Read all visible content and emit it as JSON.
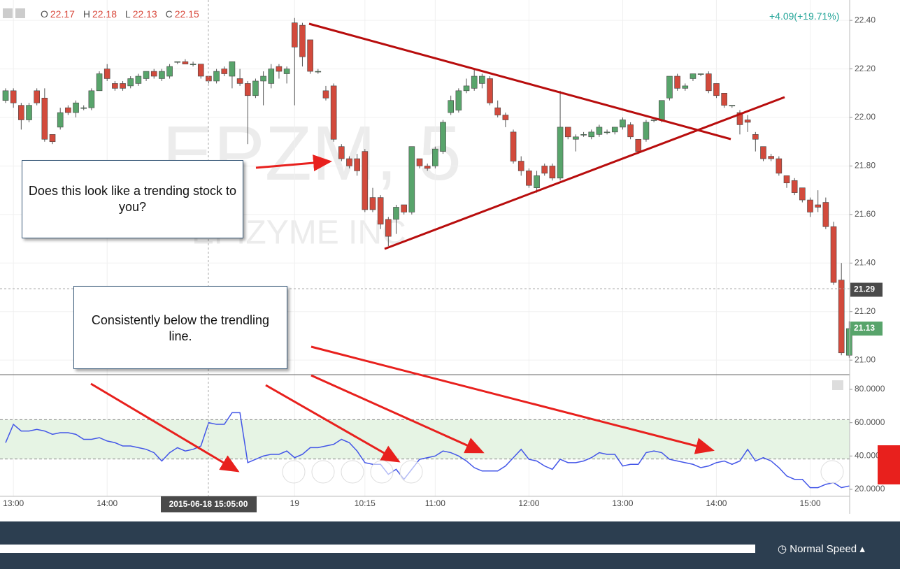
{
  "header": {
    "ohlc": [
      {
        "label": "O",
        "value": 22.17
      },
      {
        "label": "H",
        "value": 22.18
      },
      {
        "label": "L",
        "value": 22.13
      },
      {
        "label": "C",
        "value": 22.15
      }
    ],
    "change": "+4.09(+19.71%)"
  },
  "watermark": {
    "symbol": "EPZM, 5",
    "name": "EPIZYME INC"
  },
  "annotations": [
    "Does this look like a trending stock to you?",
    "Consistently below the trendling line."
  ],
  "footer": {
    "speed": "Normal Speed"
  },
  "chart_data": [
    {
      "type": "candlestick",
      "up_color": "#58a46b",
      "down_color": "#d24a3c",
      "grid": true,
      "categories": [
        null,
        "13:00",
        null,
        null,
        null,
        null,
        null,
        null,
        null,
        null,
        null,
        null,
        null,
        "14:00",
        null,
        null,
        null,
        null,
        null,
        null,
        null,
        null,
        null,
        null,
        null,
        null,
        null,
        null,
        null,
        null,
        null,
        null,
        null,
        null,
        null,
        null,
        null,
        "19",
        null,
        null,
        null,
        null,
        null,
        null,
        null,
        null,
        "10:15",
        null,
        null,
        null,
        null,
        null,
        null,
        null,
        null,
        "11:00",
        null,
        null,
        null,
        null,
        null,
        null,
        null,
        null,
        null,
        null,
        null,
        "12:00",
        null,
        null,
        null,
        null,
        null,
        null,
        null,
        null,
        null,
        null,
        null,
        "13:00",
        null,
        null,
        null,
        null,
        null,
        null,
        null,
        null,
        null,
        null,
        null,
        "14:00",
        null,
        null,
        null,
        null,
        null,
        null,
        null,
        null,
        null,
        null,
        null,
        "15:00",
        null,
        null,
        null,
        null,
        null
      ],
      "open": [
        22.07,
        22.11,
        22.05,
        21.99,
        22.11,
        22.08,
        21.93,
        21.96,
        22.04,
        22.02,
        22.04,
        22.04,
        22.11,
        22.2,
        22.14,
        22.14,
        22.13,
        22.14,
        22.16,
        22.19,
        22.16,
        22.17,
        22.23,
        22.23,
        22.22,
        22.22,
        22.17,
        22.15,
        22.2,
        22.17,
        22.16,
        22.14,
        22.09,
        22.15,
        22.14,
        22.21,
        22.18,
        22.39,
        22.38,
        22.32,
        22.19,
        22.11,
        22.13,
        21.88,
        21.83,
        21.83,
        21.86,
        21.67,
        21.67,
        21.58,
        21.58,
        21.64,
        21.61,
        21.83,
        21.8,
        21.8,
        21.86,
        22.02,
        22.03,
        22.11,
        22.12,
        22.14,
        22.16,
        22.04,
        22.01,
        21.94,
        21.82,
        21.78,
        21.71,
        21.8,
        21.8,
        21.75,
        21.96,
        21.91,
        21.93,
        21.92,
        21.93,
        21.94,
        21.94,
        21.96,
        21.97,
        21.91,
        21.91,
        21.99,
        21.99,
        22.08,
        22.17,
        22.12,
        22.16,
        22.18,
        22.18,
        22.14,
        22.1,
        22.05,
        22.02,
        21.99,
        21.93,
        21.88,
        21.84,
        21.83,
        21.76,
        21.74,
        21.71,
        21.66,
        21.64,
        21.65,
        21.55,
        21.33,
        21.02
      ],
      "high": [
        22.12,
        22.12,
        22.06,
        22.06,
        22.12,
        22.12,
        21.93,
        22.04,
        22.05,
        22.07,
        22.05,
        22.12,
        22.19,
        22.22,
        22.15,
        22.15,
        22.17,
        22.18,
        22.19,
        22.2,
        22.2,
        22.22,
        22.23,
        22.24,
        22.23,
        22.22,
        22.17,
        22.2,
        22.21,
        22.23,
        22.2,
        22.15,
        22.16,
        22.19,
        22.22,
        22.22,
        22.21,
        22.41,
        22.39,
        22.32,
        22.2,
        22.13,
        22.14,
        21.89,
        21.84,
        21.85,
        21.87,
        21.71,
        21.68,
        21.59,
        21.64,
        21.64,
        21.88,
        21.83,
        21.81,
        21.88,
        21.99,
        22.09,
        22.12,
        22.16,
        22.2,
        22.18,
        22.17,
        22.07,
        22.02,
        21.95,
        21.84,
        21.79,
        21.78,
        21.81,
        21.81,
        22.11,
        21.96,
        21.93,
        21.94,
        21.95,
        21.97,
        21.95,
        21.96,
        22.0,
        21.98,
        21.91,
        21.99,
        21.99,
        22.07,
        22.17,
        22.18,
        22.14,
        22.18,
        22.18,
        22.19,
        22.14,
        22.1,
        22.05,
        22.03,
        22.01,
        21.94,
        21.88,
        21.85,
        21.84,
        21.76,
        21.75,
        21.71,
        21.67,
        21.7,
        21.67,
        21.57,
        21.4,
        21.16
      ],
      "low": [
        22.06,
        22.04,
        21.95,
        21.98,
        22.05,
        21.9,
        21.89,
        21.95,
        22.01,
        22.0,
        22.03,
        22.03,
        22.11,
        22.15,
        22.11,
        22.11,
        22.12,
        22.13,
        22.15,
        22.16,
        22.15,
        22.16,
        22.22,
        22.22,
        22.21,
        22.16,
        22.14,
        22.14,
        22.17,
        22.12,
        22.13,
        21.89,
        22.08,
        22.05,
        22.12,
        22.16,
        22.14,
        22.05,
        22.21,
        22.18,
        22.18,
        22.07,
        21.9,
        21.82,
        21.79,
        21.76,
        21.61,
        21.61,
        21.54,
        21.47,
        21.52,
        21.6,
        21.6,
        21.79,
        21.78,
        21.79,
        21.85,
        22.01,
        22.02,
        22.1,
        22.11,
        22.12,
        22.05,
        22.0,
        21.96,
        21.81,
        21.76,
        21.71,
        21.69,
        21.76,
        21.74,
        21.74,
        21.91,
        21.86,
        21.92,
        21.91,
        21.92,
        21.93,
        21.93,
        21.95,
        21.91,
        21.85,
        21.9,
        21.98,
        21.98,
        22.07,
        22.11,
        22.11,
        22.15,
        22.17,
        22.1,
        22.08,
        22.04,
        22.04,
        21.93,
        21.94,
        21.86,
        21.82,
        21.82,
        21.76,
        21.71,
        21.68,
        21.65,
        21.59,
        21.61,
        21.54,
        21.31,
        21.02,
        21.01
      ],
      "close": [
        22.11,
        22.06,
        21.99,
        22.05,
        22.06,
        21.91,
        21.9,
        22.02,
        22.02,
        22.06,
        22.04,
        22.11,
        22.18,
        22.16,
        22.12,
        22.12,
        22.16,
        22.17,
        22.19,
        22.17,
        22.19,
        22.21,
        22.23,
        22.22,
        22.22,
        22.17,
        22.15,
        22.19,
        22.18,
        22.23,
        22.14,
        22.09,
        22.15,
        22.17,
        22.2,
        22.19,
        22.2,
        22.29,
        22.25,
        22.19,
        22.19,
        22.08,
        21.91,
        21.83,
        21.8,
        21.78,
        21.62,
        21.62,
        21.56,
        21.51,
        21.63,
        21.61,
        21.88,
        21.8,
        21.79,
        21.87,
        21.98,
        22.07,
        22.11,
        22.13,
        22.17,
        22.17,
        22.06,
        22.01,
        21.99,
        21.82,
        21.78,
        21.72,
        21.76,
        21.77,
        21.75,
        21.96,
        21.92,
        21.92,
        21.93,
        21.94,
        21.96,
        21.94,
        21.96,
        21.99,
        21.92,
        21.86,
        21.98,
        21.99,
        22.07,
        22.17,
        22.12,
        22.13,
        22.18,
        22.18,
        22.11,
        22.09,
        22.05,
        22.05,
        21.97,
        21.98,
        21.91,
        21.83,
        21.83,
        21.77,
        21.73,
        21.69,
        21.66,
        21.61,
        21.63,
        21.55,
        21.32,
        21.03,
        21.13
      ],
      "ylim": [
        20.94,
        22.484
      ],
      "yticks": [
        {
          "value": 21.0,
          "label": "21.00"
        },
        {
          "value": 21.2,
          "label": "21.20"
        },
        {
          "value": 21.4,
          "label": "21.40"
        },
        {
          "value": 21.6,
          "label": "21.60"
        },
        {
          "value": 21.8,
          "label": "21.80"
        },
        {
          "value": 22.0,
          "label": "22.00"
        },
        {
          "value": 22.2,
          "label": "22.20"
        },
        {
          "value": 22.4,
          "label": "22.40"
        }
      ],
      "crosshair_label": "2015-06-18 15:05:00",
      "crosshair_price": 21.29,
      "last_price": 21.13
    },
    {
      "type": "line",
      "color": "#4356e8",
      "band_color": "#e6f4e4",
      "values": [
        48,
        59,
        55,
        55,
        56,
        55,
        53,
        54,
        54,
        53,
        50,
        50,
        51,
        49,
        48,
        46,
        46,
        45,
        44,
        42,
        37,
        42,
        45,
        43,
        44,
        46,
        60,
        59,
        59,
        66,
        66,
        36,
        38,
        40,
        41,
        41,
        43,
        39,
        41,
        45,
        45,
        46,
        47,
        50,
        48,
        43,
        36,
        35,
        35,
        29,
        32,
        26,
        32,
        38,
        39,
        40,
        43,
        42,
        40,
        37,
        33,
        31,
        31,
        31,
        34,
        39,
        44,
        38,
        37,
        34,
        32,
        38,
        36,
        36,
        37,
        39,
        42,
        41,
        41,
        34,
        35,
        35,
        42,
        43,
        42,
        38,
        37,
        36,
        35,
        33,
        34,
        36,
        37,
        35,
        37,
        44,
        37,
        39,
        37,
        33,
        28,
        26,
        26,
        21,
        21,
        23,
        24,
        21,
        22
      ],
      "band": [
        38.2,
        61.8
      ],
      "ylim": [
        15.8,
        88.4
      ],
      "yticks": [
        {
          "value": 20,
          "label": "20.0000"
        },
        {
          "value": 40,
          "label": "40.0000"
        },
        {
          "value": 60,
          "label": "60.0000"
        },
        {
          "value": 80,
          "label": "80.0000"
        }
      ]
    }
  ]
}
